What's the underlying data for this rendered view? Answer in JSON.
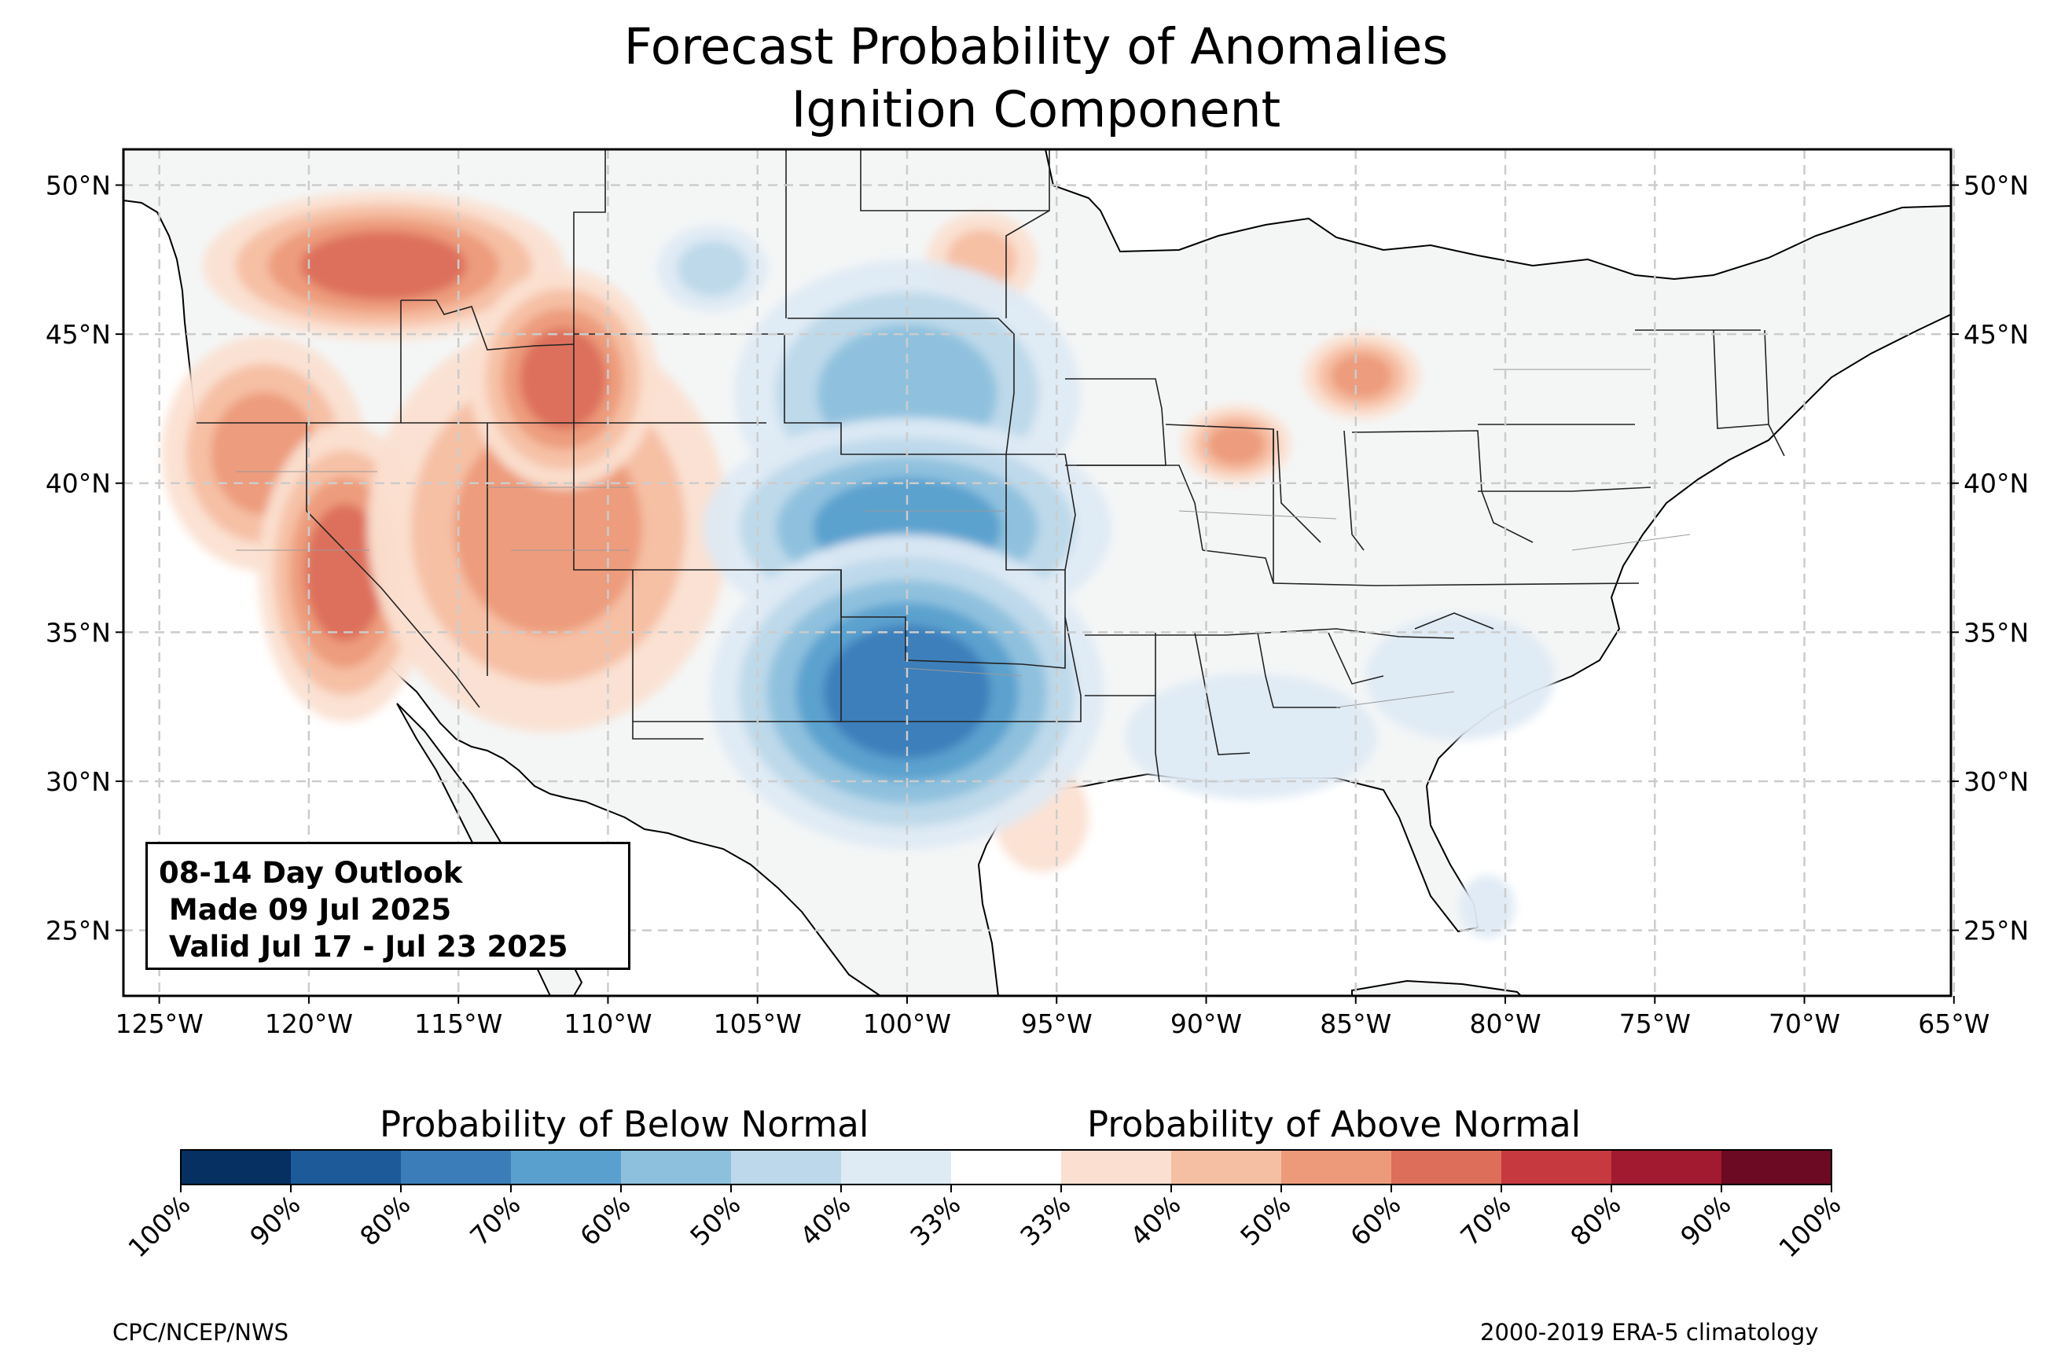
{
  "title": "Forecast Probability of Anomalies",
  "subtitle": "Ignition Component",
  "map": {
    "projection": "Plate Carree",
    "lon_range": [
      -126.2,
      -65.1
    ],
    "lat_range": [
      22.8,
      51.2
    ],
    "lat_ticks": [
      "50°N",
      "45°N",
      "40°N",
      "35°N",
      "30°N",
      "25°N"
    ],
    "lat_tick_values": [
      50,
      45,
      40,
      35,
      30,
      25
    ],
    "lon_ticks": [
      "125°W",
      "120°W",
      "115°W",
      "110°W",
      "105°W",
      "100°W",
      "95°W",
      "90°W",
      "85°W",
      "80°W",
      "75°W",
      "70°W",
      "65°W"
    ],
    "lon_tick_values": [
      -125,
      -120,
      -115,
      -110,
      -105,
      -100,
      -95,
      -90,
      -85,
      -80,
      -75,
      -70,
      -65
    ],
    "grid": "dashed gridlines every 5°",
    "land_color": "#f4f6f6",
    "ocean_color": "#ffffff",
    "regions": [
      {
        "area": "Northern Idaho / western Montana / eastern Washington",
        "category": "above",
        "max_probability": "70%",
        "center": [
          -117.5,
          47.3
        ]
      },
      {
        "area": "Western Oregon / northern California",
        "category": "above",
        "max_probability": "60%",
        "center": [
          -121.5,
          41.0
        ]
      },
      {
        "area": "Sierra Nevada / central California",
        "category": "above",
        "max_probability": "70%",
        "center": [
          -118.8,
          37.0
        ]
      },
      {
        "area": "Nevada / Utah / Arizona / western Colorado",
        "category": "above",
        "max_probability": "60%",
        "center": [
          -112.0,
          38.5
        ]
      },
      {
        "area": "Western Wyoming / eastern Idaho",
        "category": "above",
        "max_probability": "70%",
        "center": [
          -111.5,
          43.5
        ]
      },
      {
        "area": "Northeastern North Dakota",
        "category": "above",
        "max_probability": "50%",
        "center": [
          -97.5,
          47.5
        ]
      },
      {
        "area": "Northern Illinois",
        "category": "above",
        "max_probability": "60%",
        "center": [
          -89.0,
          41.3
        ]
      },
      {
        "area": "Lower Michigan",
        "category": "above",
        "max_probability": "60%",
        "center": [
          -84.8,
          43.6
        ]
      },
      {
        "area": "Upper Texas coast",
        "category": "above",
        "max_probability": "40%",
        "center": [
          -95.5,
          28.8
        ]
      },
      {
        "area": "Nebraska / South Dakota",
        "category": "below",
        "max_probability": "60%",
        "center": [
          -100.0,
          43.0
        ]
      },
      {
        "area": "Kansas / eastern Colorado",
        "category": "below",
        "max_probability": "70%",
        "center": [
          -100.0,
          38.5
        ]
      },
      {
        "area": "Oklahoma / north Texas / eastern New Mexico",
        "category": "below",
        "max_probability": "80%",
        "center": [
          -100.0,
          33.0
        ]
      },
      {
        "area": "Eastern Montana",
        "category": "below",
        "max_probability": "50%",
        "center": [
          -106.5,
          47.2
        ]
      },
      {
        "area": "Louisiana / Mississippi / Alabama",
        "category": "below",
        "max_probability": "40%",
        "center": [
          -88.5,
          31.5
        ]
      },
      {
        "area": "Georgia / Carolinas",
        "category": "below",
        "max_probability": "40%",
        "center": [
          -81.5,
          33.5
        ]
      },
      {
        "area": "Southern Florida",
        "category": "below",
        "max_probability": "40%",
        "center": [
          -80.6,
          25.8
        ]
      }
    ]
  },
  "info_box": {
    "line1": "08-14 Day Outlook",
    "line2": " Made 09 Jul 2025",
    "line3": " Valid Jul 17 - Jul 23 2025"
  },
  "colorbar": {
    "below_label": "Probability of Below Normal",
    "above_label": "Probability of Above Normal",
    "colors": [
      "#053061",
      "#1d5a9a",
      "#3a7db9",
      "#5aa0ce",
      "#8cc0dd",
      "#bcd8ea",
      "#deeaf4",
      "#ffffff",
      "#fbe0d1",
      "#f5bfa3",
      "#ec9a7a",
      "#dc6e5a",
      "#c6393e",
      "#a11a2f",
      "#6b0a22"
    ],
    "tick_labels": [
      "100%",
      "90%",
      "80%",
      "70%",
      "60%",
      "50%",
      "40%",
      "33%",
      "33%",
      "40%",
      "50%",
      "60%",
      "70%",
      "80%",
      "90%",
      "100%"
    ]
  },
  "credits": {
    "left": "CPC/NCEP/NWS",
    "right": "2000-2019 ERA-5 climatology"
  }
}
